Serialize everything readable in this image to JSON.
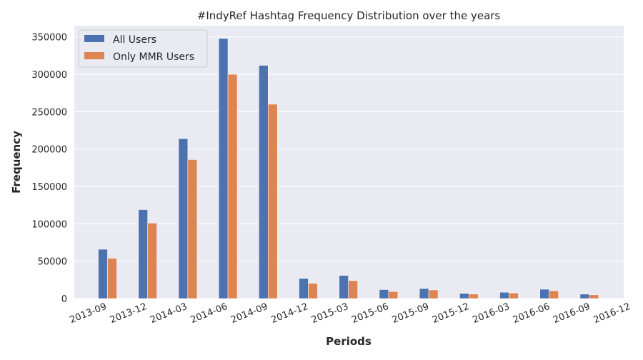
{
  "chart_data": {
    "type": "bar",
    "title": "#IndyRef Hashtag Frequency Distribution over the years",
    "xlabel": "Periods",
    "ylabel": "Frequency",
    "categories": [
      "2013-09",
      "2013-12",
      "2014-03",
      "2014-06",
      "2014-09",
      "2014-12",
      "2015-03",
      "2015-06",
      "2015-09",
      "2015-12",
      "2016-03",
      "2016-06",
      "2016-09",
      "2016-12"
    ],
    "series": [
      {
        "name": "All Users",
        "color": "#4c72b0",
        "values": [
          66000,
          119000,
          214000,
          348000,
          312000,
          27000,
          31000,
          12000,
          13500,
          7000,
          8500,
          12500,
          6000,
          null
        ]
      },
      {
        "name": "Only MMR Users",
        "color": "#dd8452",
        "values": [
          54000,
          101000,
          186000,
          300000,
          260000,
          20500,
          24000,
          9500,
          11500,
          6000,
          7500,
          10500,
          5000,
          null
        ]
      }
    ],
    "yticks": [
      0,
      50000,
      100000,
      150000,
      200000,
      250000,
      300000,
      350000
    ],
    "ylim": [
      0,
      365000
    ],
    "grid": true,
    "legend_position": "top-left",
    "background": "#eaeaf2"
  }
}
